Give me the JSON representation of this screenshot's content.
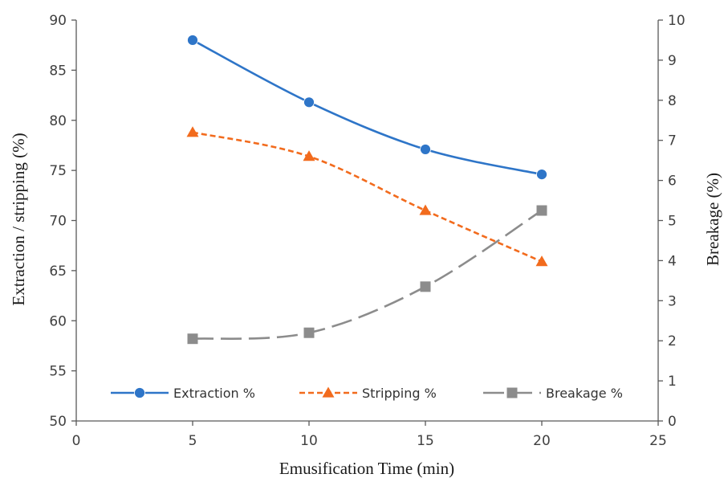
{
  "chart_data": {
    "type": "line",
    "title": "",
    "xlabel": "Emusification Time (min)",
    "ylabel": "Extraction / stripping (%)",
    "y2label": "Breakage (%)",
    "xlim": [
      0,
      25
    ],
    "xticks": [
      0,
      5,
      10,
      15,
      20,
      25
    ],
    "ylim": [
      50,
      90
    ],
    "yticks": [
      50,
      55,
      60,
      65,
      70,
      75,
      80,
      85,
      90
    ],
    "y2lim": [
      0,
      10
    ],
    "y2ticks": [
      0,
      1,
      2,
      3,
      4,
      5,
      6,
      7,
      8,
      9,
      10
    ],
    "grid": false,
    "legend_position": "bottom-inside",
    "x": [
      5,
      10,
      15,
      20
    ],
    "series": [
      {
        "name": "Extraction %",
        "axis": "left",
        "values": [
          88.0,
          81.8,
          77.1,
          74.6
        ],
        "color": "#2E75C8",
        "marker": "circle",
        "dash": "solid"
      },
      {
        "name": "Stripping %",
        "axis": "left",
        "values": [
          78.8,
          76.4,
          71.0,
          65.9
        ],
        "color": "#F26B1D",
        "marker": "triangle",
        "dash": "dashed"
      },
      {
        "name": "Breakage %",
        "axis": "right",
        "values": [
          2.05,
          2.2,
          3.35,
          5.25
        ],
        "color": "#8C8C8C",
        "marker": "square",
        "dash": "long-dash"
      }
    ]
  }
}
